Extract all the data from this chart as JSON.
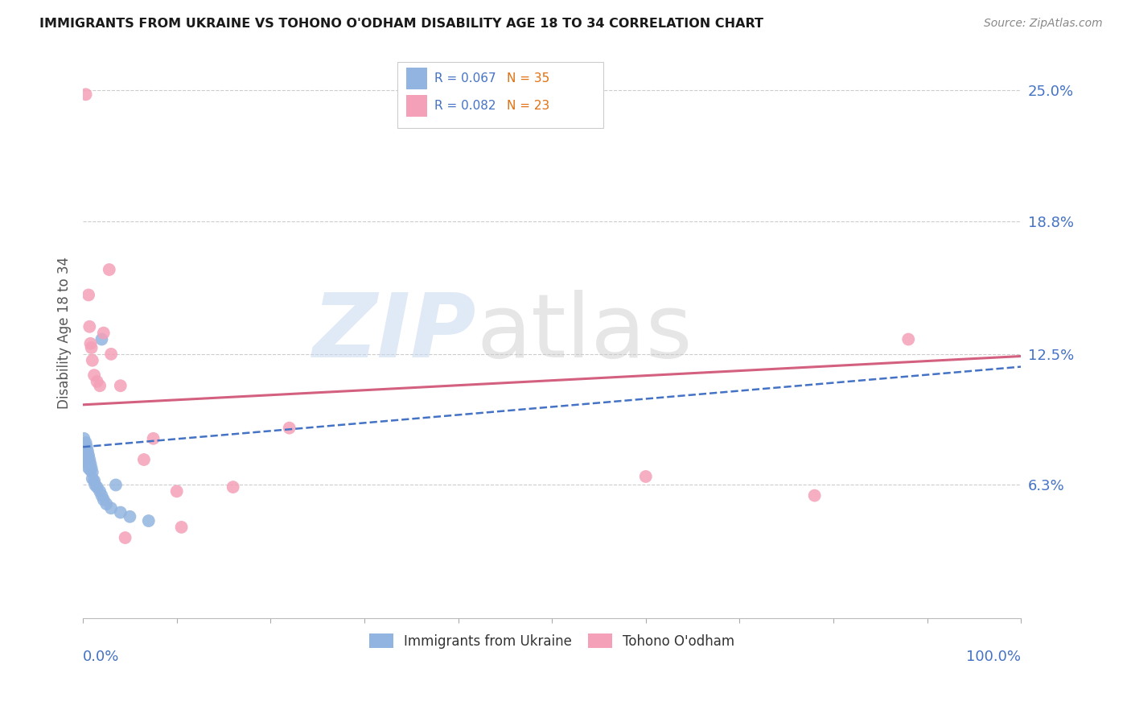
{
  "title": "IMMIGRANTS FROM UKRAINE VS TOHONO O'ODHAM DISABILITY AGE 18 TO 34 CORRELATION CHART",
  "source": "Source: ZipAtlas.com",
  "ylabel": "Disability Age 18 to 34",
  "ytick_labels": [
    "6.3%",
    "12.5%",
    "18.8%",
    "25.0%"
  ],
  "ytick_values": [
    0.063,
    0.125,
    0.188,
    0.25
  ],
  "xlim": [
    0.0,
    1.0
  ],
  "ylim": [
    0.0,
    0.27
  ],
  "legend_label_blue": "Immigrants from Ukraine",
  "legend_label_pink": "Tohono O'odham",
  "blue_color": "#92b4e0",
  "pink_color": "#f4a0b8",
  "blue_line_color": "#4472c4",
  "pink_line_color": "#d46080",
  "orange_color": "#e07010",
  "blue_dots": [
    [
      0.001,
      0.085
    ],
    [
      0.002,
      0.082
    ],
    [
      0.002,
      0.079
    ],
    [
      0.003,
      0.083
    ],
    [
      0.003,
      0.08
    ],
    [
      0.003,
      0.077
    ],
    [
      0.004,
      0.081
    ],
    [
      0.004,
      0.078
    ],
    [
      0.004,
      0.075
    ],
    [
      0.005,
      0.079
    ],
    [
      0.005,
      0.076
    ],
    [
      0.005,
      0.073
    ],
    [
      0.006,
      0.077
    ],
    [
      0.006,
      0.074
    ],
    [
      0.006,
      0.071
    ],
    [
      0.007,
      0.075
    ],
    [
      0.007,
      0.072
    ],
    [
      0.008,
      0.073
    ],
    [
      0.008,
      0.07
    ],
    [
      0.009,
      0.071
    ],
    [
      0.01,
      0.069
    ],
    [
      0.01,
      0.066
    ],
    [
      0.012,
      0.065
    ],
    [
      0.013,
      0.063
    ],
    [
      0.015,
      0.062
    ],
    [
      0.018,
      0.06
    ],
    [
      0.02,
      0.058
    ],
    [
      0.022,
      0.056
    ],
    [
      0.025,
      0.054
    ],
    [
      0.03,
      0.052
    ],
    [
      0.04,
      0.05
    ],
    [
      0.05,
      0.048
    ],
    [
      0.07,
      0.046
    ],
    [
      0.02,
      0.132
    ],
    [
      0.035,
      0.063
    ]
  ],
  "pink_dots": [
    [
      0.003,
      0.248
    ],
    [
      0.006,
      0.153
    ],
    [
      0.007,
      0.138
    ],
    [
      0.008,
      0.13
    ],
    [
      0.009,
      0.128
    ],
    [
      0.01,
      0.122
    ],
    [
      0.012,
      0.115
    ],
    [
      0.015,
      0.112
    ],
    [
      0.018,
      0.11
    ],
    [
      0.022,
      0.135
    ],
    [
      0.028,
      0.165
    ],
    [
      0.03,
      0.125
    ],
    [
      0.04,
      0.11
    ],
    [
      0.065,
      0.075
    ],
    [
      0.075,
      0.085
    ],
    [
      0.6,
      0.067
    ],
    [
      0.78,
      0.058
    ],
    [
      0.88,
      0.132
    ],
    [
      0.045,
      0.038
    ],
    [
      0.1,
      0.06
    ],
    [
      0.105,
      0.043
    ],
    [
      0.16,
      0.062
    ],
    [
      0.22,
      0.09
    ]
  ],
  "pink_trendline": [
    [
      0.0,
      0.101
    ],
    [
      1.0,
      0.124
    ]
  ],
  "blue_trendline": [
    [
      0.0,
      0.081
    ],
    [
      1.0,
      0.119
    ]
  ]
}
